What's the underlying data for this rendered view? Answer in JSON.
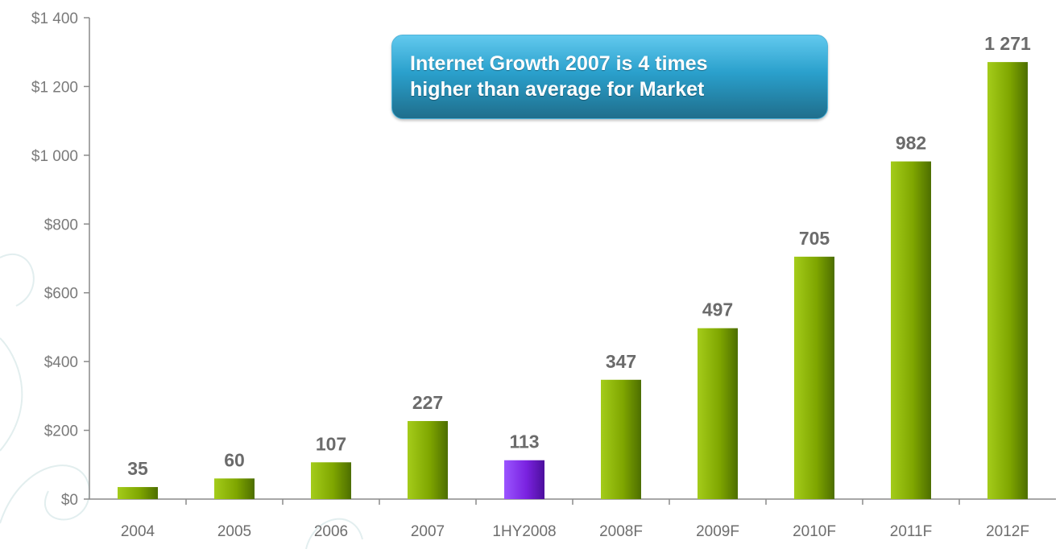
{
  "chart_data": {
    "type": "bar",
    "categories": [
      "2004",
      "2005",
      "2006",
      "2007",
      "1HY2008",
      "2008F",
      "2009F",
      "2010F",
      "2011F",
      "2012F"
    ],
    "values": [
      35,
      60,
      107,
      227,
      113,
      347,
      497,
      705,
      982,
      1271
    ],
    "value_labels": [
      "35",
      "60",
      "107",
      "227",
      "113",
      "347",
      "497",
      "705",
      "982",
      "1 271"
    ],
    "y_ticks": [
      0,
      200,
      400,
      600,
      800,
      1000,
      1200,
      1400
    ],
    "y_tick_labels": [
      "$0",
      "$200",
      "$400",
      "$600",
      "$800",
      "$1 000",
      "$1 200",
      "$1 400"
    ],
    "ylim": [
      0,
      1400
    ],
    "title": "",
    "xlabel": "",
    "ylabel": "",
    "grid": false,
    "legend": "none",
    "colors": {
      "default": "#8db400",
      "highlight": "#7a22e0",
      "highlight_category": "1HY2008"
    }
  },
  "callout": {
    "line1": "Internet Growth 2007 is 4 times",
    "line2": "higher than average for Market"
  }
}
